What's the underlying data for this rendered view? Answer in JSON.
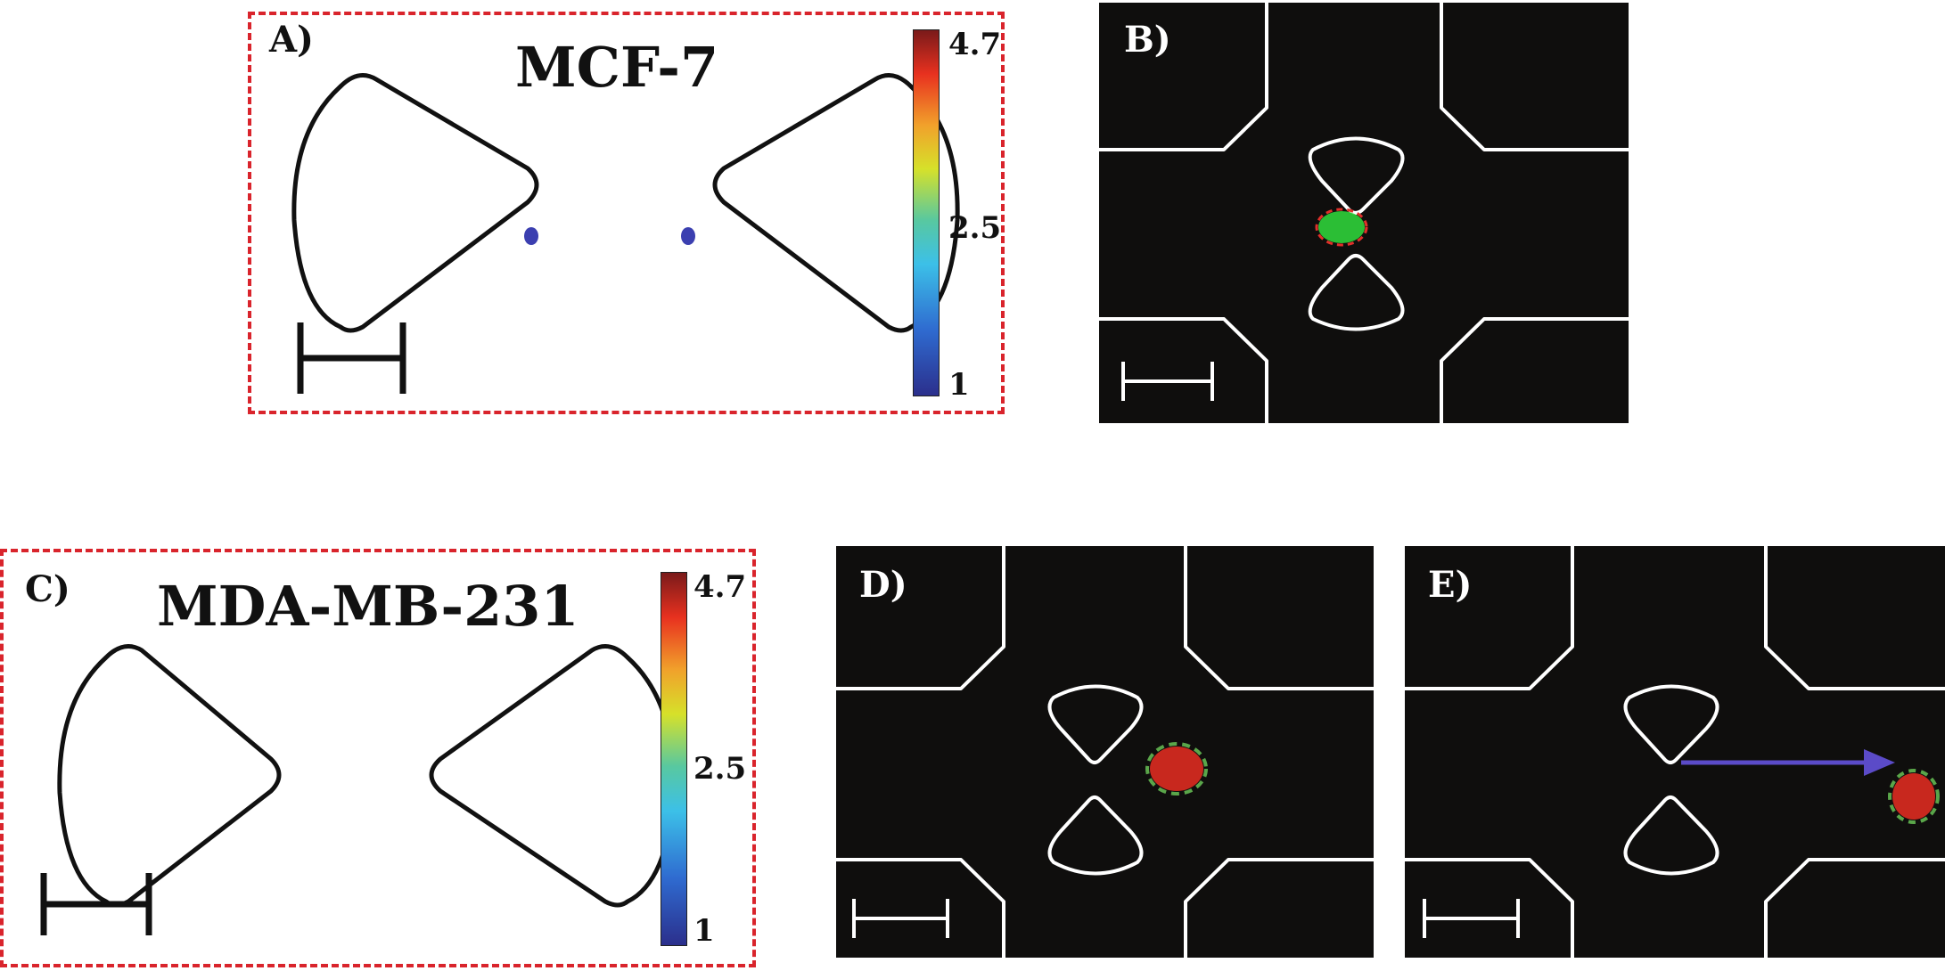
{
  "panels": {
    "a": {
      "label": "A)",
      "title": "MCF-7",
      "colorbar": {
        "max": "4.7",
        "mid": "2.5",
        "min": "1"
      }
    },
    "b": {
      "label": "B)",
      "cell_color": "#2fd23a",
      "outline_color": "#e0302a"
    },
    "c": {
      "label": "C)",
      "title": "MDA-MB-231",
      "colorbar": {
        "max": "4.7",
        "mid": "2.5",
        "min": "1"
      }
    },
    "d": {
      "label": "D)",
      "cell_color": "#c8281e",
      "outline_color": "#5aa64a"
    },
    "e": {
      "label": "E)",
      "cell_color": "#c8281e",
      "outline_color": "#5aa64a",
      "arrow_color": "#5b4bc8"
    }
  },
  "colors": {
    "dash_border": "#d9242c",
    "sim_outline": "#111111",
    "micro_outline": "#ffffff",
    "micro_bg": "#0f0e0d"
  }
}
